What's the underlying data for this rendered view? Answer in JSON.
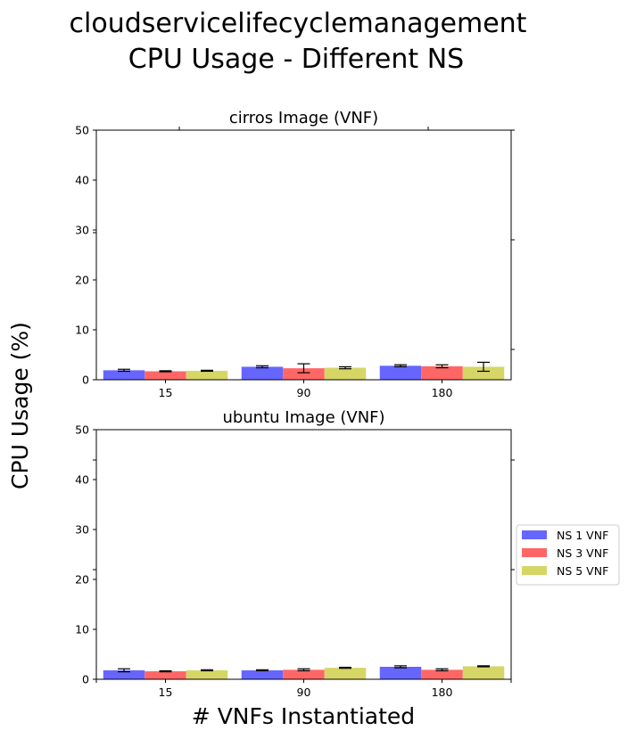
{
  "figure": {
    "title_line1": "cloudservicelifecyclemanagement",
    "title_line2": "CPU Usage - Different NS",
    "xlabel": "# VNFs Instantiated",
    "ylabel": "CPU Usage (%)"
  },
  "legend": {
    "placement": "center-right",
    "entries": [
      {
        "label": "NS 1 VNF",
        "color": "#6666ff"
      },
      {
        "label": "NS 3 VNF",
        "color": "#ff6666"
      },
      {
        "label": "NS 5 VNF",
        "color": "#d6d666"
      }
    ]
  },
  "chart_data": [
    {
      "type": "bar",
      "title": "cirros Image (VNF)",
      "categories": [
        "15",
        "90",
        "180"
      ],
      "ylim": [
        0,
        50
      ],
      "yticks": [
        0,
        10,
        20,
        30,
        40,
        50
      ],
      "series": [
        {
          "name": "NS 1 VNF",
          "color": "#6666ff",
          "values": [
            1.9,
            2.6,
            2.8
          ],
          "errors": [
            0.2,
            0.2,
            0.2
          ]
        },
        {
          "name": "NS 3 VNF",
          "color": "#ff6666",
          "values": [
            1.7,
            2.3,
            2.7
          ],
          "errors": [
            0.1,
            0.9,
            0.3
          ]
        },
        {
          "name": "NS 5 VNF",
          "color": "#d6d666",
          "values": [
            1.8,
            2.4,
            2.6
          ],
          "errors": [
            0.1,
            0.2,
            0.9
          ]
        }
      ]
    },
    {
      "type": "bar",
      "title": "ubuntu Image (VNF)",
      "categories": [
        "15",
        "90",
        "180"
      ],
      "ylim": [
        0,
        50
      ],
      "yticks": [
        0,
        10,
        20,
        30,
        40,
        50
      ],
      "series": [
        {
          "name": "NS 1 VNF",
          "color": "#6666ff",
          "values": [
            1.8,
            1.8,
            2.5
          ],
          "errors": [
            0.3,
            0.1,
            0.2
          ]
        },
        {
          "name": "NS 3 VNF",
          "color": "#ff6666",
          "values": [
            1.6,
            1.9,
            1.9
          ],
          "errors": [
            0.1,
            0.2,
            0.2
          ]
        },
        {
          "name": "NS 5 VNF",
          "color": "#d6d666",
          "values": [
            1.8,
            2.3,
            2.6
          ],
          "errors": [
            0.1,
            0.1,
            0.1
          ]
        }
      ]
    }
  ]
}
